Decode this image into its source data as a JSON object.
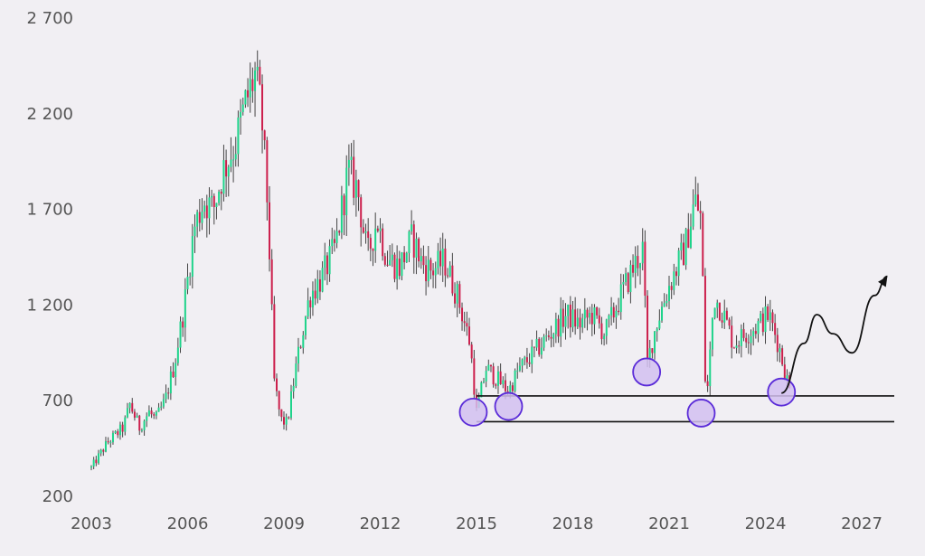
{
  "chart_data": {
    "type": "candlestick",
    "title": "",
    "xlabel": "",
    "ylabel": "",
    "xlim": [
      2003,
      2028
    ],
    "ylim": [
      200,
      2700
    ],
    "x_ticks": [
      {
        "value": 2003,
        "label": "2003"
      },
      {
        "value": 2006,
        "label": "2006"
      },
      {
        "value": 2009,
        "label": "2009"
      },
      {
        "value": 2012,
        "label": "2012"
      },
      {
        "value": 2015,
        "label": "2015"
      },
      {
        "value": 2018,
        "label": "2018"
      },
      {
        "value": 2021,
        "label": "2021"
      },
      {
        "value": 2024,
        "label": "2024"
      },
      {
        "value": 2027,
        "label": "2027"
      }
    ],
    "y_ticks": [
      {
        "value": 200,
        "label": "200"
      },
      {
        "value": 700,
        "label": "700"
      },
      {
        "value": 1200,
        "label": "1 200"
      },
      {
        "value": 1700,
        "label": "1 700"
      },
      {
        "value": 2200,
        "label": "2 200"
      },
      {
        "value": 2700,
        "label": "2 700"
      }
    ],
    "grid": false,
    "colors": {
      "up": "#1ed38a",
      "down": "#cc1f4c",
      "wick": "#444444",
      "support": "#111111",
      "marker_fill": "#d2c0f0",
      "marker_stroke": "#5a2bd8",
      "projection": "#111111"
    },
    "series": [
      {
        "values": [
          [
            2003.0,
            350
          ],
          [
            2003.5,
            480
          ],
          [
            2004.0,
            560
          ],
          [
            2004.2,
            680
          ],
          [
            2004.5,
            560
          ],
          [
            2004.8,
            640
          ],
          [
            2005.0,
            600
          ],
          [
            2005.3,
            700
          ],
          [
            2005.6,
            900
          ],
          [
            2005.9,
            1200
          ],
          [
            2006.2,
            1600
          ],
          [
            2006.5,
            1750
          ],
          [
            2006.8,
            1700
          ],
          [
            2007.1,
            1900
          ],
          [
            2007.5,
            2050
          ],
          [
            2007.8,
            2250
          ],
          [
            2008.1,
            2400
          ],
          [
            2008.3,
            2200
          ],
          [
            2008.5,
            1700
          ],
          [
            2008.7,
            800
          ],
          [
            2008.9,
            600
          ],
          [
            2009.1,
            580
          ],
          [
            2009.4,
            900
          ],
          [
            2009.8,
            1250
          ],
          [
            2010.2,
            1350
          ],
          [
            2010.6,
            1500
          ],
          [
            2011.0,
            1900
          ],
          [
            2011.3,
            1800
          ],
          [
            2011.6,
            1450
          ],
          [
            2011.9,
            1650
          ],
          [
            2012.2,
            1450
          ],
          [
            2012.6,
            1400
          ],
          [
            2013.0,
            1550
          ],
          [
            2013.3,
            1420
          ],
          [
            2013.6,
            1380
          ],
          [
            2014.0,
            1430
          ],
          [
            2014.4,
            1250
          ],
          [
            2014.8,
            1000
          ],
          [
            2015.0,
            640
          ],
          [
            2015.3,
            870
          ],
          [
            2015.6,
            820
          ],
          [
            2016.0,
            750
          ],
          [
            2016.3,
            860
          ],
          [
            2016.8,
            950
          ],
          [
            2017.3,
            1050
          ],
          [
            2017.8,
            1150
          ],
          [
            2018.2,
            1100
          ],
          [
            2018.6,
            1150
          ],
          [
            2019.0,
            1050
          ],
          [
            2019.5,
            1250
          ],
          [
            2019.9,
            1400
          ],
          [
            2020.2,
            1500
          ],
          [
            2020.3,
            880
          ],
          [
            2020.6,
            1100
          ],
          [
            2021.0,
            1300
          ],
          [
            2021.5,
            1500
          ],
          [
            2021.8,
            1750
          ],
          [
            2022.0,
            1650
          ],
          [
            2022.15,
            650
          ],
          [
            2022.4,
            1250
          ],
          [
            2022.7,
            1150
          ],
          [
            2023.0,
            1000
          ],
          [
            2023.4,
            1050
          ],
          [
            2023.8,
            1100
          ],
          [
            2024.1,
            1150
          ],
          [
            2024.4,
            1000
          ],
          [
            2024.8,
            720
          ]
        ]
      }
    ],
    "support_lines": [
      {
        "value": 725,
        "x_start": 2015.0,
        "x_end": 2028.2
      },
      {
        "value": 590,
        "x_start": 2015.0,
        "x_end": 2028.2
      }
    ],
    "markers": [
      {
        "x": 2014.9,
        "y": 640
      },
      {
        "x": 2016.0,
        "y": 670
      },
      {
        "x": 2020.3,
        "y": 850
      },
      {
        "x": 2022.0,
        "y": 635
      },
      {
        "x": 2024.5,
        "y": 745
      }
    ],
    "projection": [
      [
        2024.5,
        740
      ],
      [
        2025.2,
        1000
      ],
      [
        2025.6,
        1150
      ],
      [
        2026.1,
        1050
      ],
      [
        2026.7,
        950
      ],
      [
        2027.4,
        1250
      ],
      [
        2027.8,
        1350
      ]
    ]
  }
}
